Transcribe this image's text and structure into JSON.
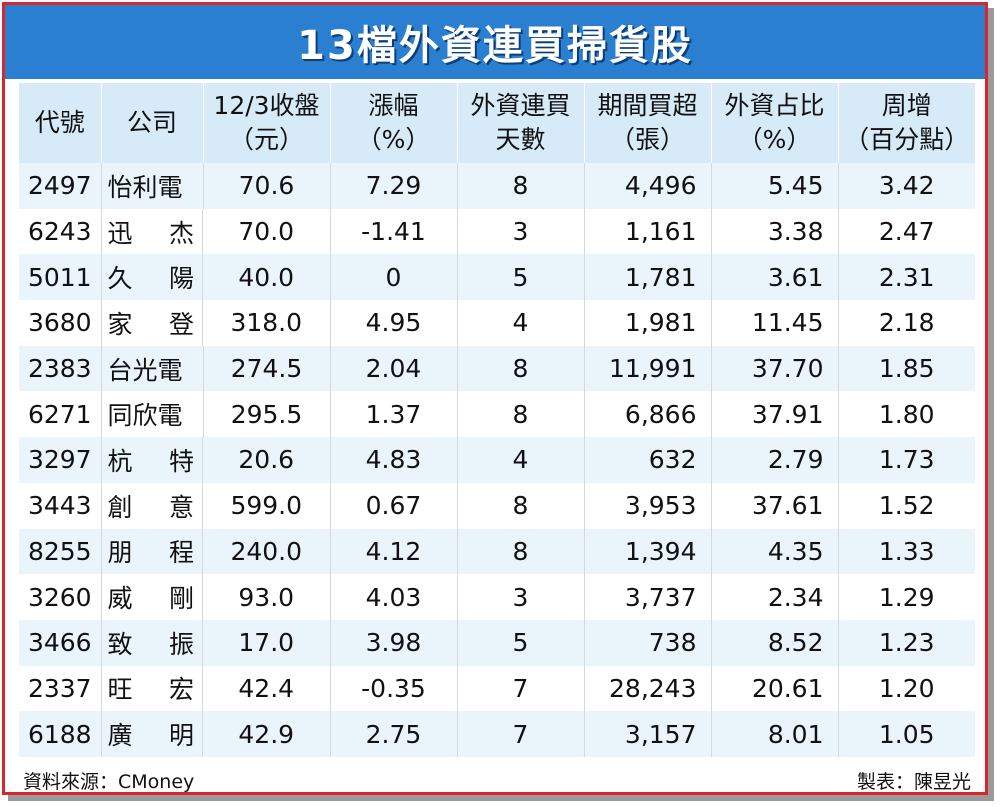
{
  "title": "13檔外資連買掃貨股",
  "headers": [
    {
      "line1": "代號",
      "line2": ""
    },
    {
      "line1": "公司",
      "line2": ""
    },
    {
      "line1": "12/3收盤",
      "line2": "（元）"
    },
    {
      "line1": "漲幅",
      "line2": "（%）"
    },
    {
      "line1": "外資連買",
      "line2": "天數"
    },
    {
      "line1": "期間買超",
      "line2": "（張）"
    },
    {
      "line1": "外資占比",
      "line2": "（%）"
    },
    {
      "line1": "周增",
      "line2": "（百分點）"
    }
  ],
  "rows": [
    {
      "code": "2497",
      "name": [
        "怡利電"
      ],
      "close": "70.6",
      "change": "7.29",
      "days": "8",
      "buy": "4,496",
      "share": "5.45",
      "weekly": "3.42"
    },
    {
      "code": "6243",
      "name": [
        "迅",
        "杰"
      ],
      "close": "70.0",
      "change": "-1.41",
      "days": "3",
      "buy": "1,161",
      "share": "3.38",
      "weekly": "2.47"
    },
    {
      "code": "5011",
      "name": [
        "久",
        "陽"
      ],
      "close": "40.0",
      "change": "0",
      "days": "5",
      "buy": "1,781",
      "share": "3.61",
      "weekly": "2.31"
    },
    {
      "code": "3680",
      "name": [
        "家",
        "登"
      ],
      "close": "318.0",
      "change": "4.95",
      "days": "4",
      "buy": "1,981",
      "share": "11.45",
      "weekly": "2.18"
    },
    {
      "code": "2383",
      "name": [
        "台光電"
      ],
      "close": "274.5",
      "change": "2.04",
      "days": "8",
      "buy": "11,991",
      "share": "37.70",
      "weekly": "1.85"
    },
    {
      "code": "6271",
      "name": [
        "同欣電"
      ],
      "close": "295.5",
      "change": "1.37",
      "days": "8",
      "buy": "6,866",
      "share": "37.91",
      "weekly": "1.80"
    },
    {
      "code": "3297",
      "name": [
        "杭",
        "特"
      ],
      "close": "20.6",
      "change": "4.83",
      "days": "4",
      "buy": "632",
      "share": "2.79",
      "weekly": "1.73"
    },
    {
      "code": "3443",
      "name": [
        "創",
        "意"
      ],
      "close": "599.0",
      "change": "0.67",
      "days": "8",
      "buy": "3,953",
      "share": "37.61",
      "weekly": "1.52"
    },
    {
      "code": "8255",
      "name": [
        "朋",
        "程"
      ],
      "close": "240.0",
      "change": "4.12",
      "days": "8",
      "buy": "1,394",
      "share": "4.35",
      "weekly": "1.33"
    },
    {
      "code": "3260",
      "name": [
        "威",
        "剛"
      ],
      "close": "93.0",
      "change": "4.03",
      "days": "3",
      "buy": "3,737",
      "share": "2.34",
      "weekly": "1.29"
    },
    {
      "code": "3466",
      "name": [
        "致",
        "振"
      ],
      "close": "17.0",
      "change": "3.98",
      "days": "5",
      "buy": "738",
      "share": "8.52",
      "weekly": "1.23"
    },
    {
      "code": "2337",
      "name": [
        "旺",
        "宏"
      ],
      "close": "42.4",
      "change": "-0.35",
      "days": "7",
      "buy": "28,243",
      "share": "20.61",
      "weekly": "1.20"
    },
    {
      "code": "6188",
      "name": [
        "廣",
        "明"
      ],
      "close": "42.9",
      "change": "2.75",
      "days": "7",
      "buy": "3,157",
      "share": "8.01",
      "weekly": "1.05"
    }
  ],
  "footer": {
    "source": "資料來源：CMoney",
    "maker": "製表：陳昱光"
  }
}
